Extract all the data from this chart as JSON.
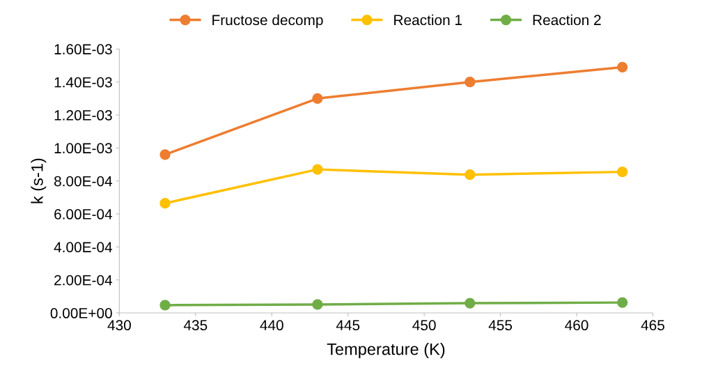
{
  "chart_data": {
    "type": "line",
    "xlabel": "Temperature (K)",
    "ylabel": "k (s-1)",
    "x": [
      433,
      443,
      453,
      463
    ],
    "series": [
      {
        "name": "Fructose decomp",
        "color": "#ed7d31",
        "values": [
          0.00096,
          0.0013,
          0.0014,
          0.00149
        ]
      },
      {
        "name": "Reaction 1",
        "color": "#ffc000",
        "values": [
          0.000665,
          0.00087,
          0.000838,
          0.000855
        ]
      },
      {
        "name": "Reaction 2",
        "color": "#70ad47",
        "values": [
          4.7e-05,
          5.1e-05,
          5.9e-05,
          6.3e-05
        ]
      }
    ],
    "xlim": [
      430,
      465
    ],
    "xticks": [
      430,
      435,
      440,
      445,
      450,
      455,
      460,
      465
    ],
    "ylim": [
      0,
      0.0016
    ],
    "yticks": [
      {
        "value": 0,
        "label": "0.00E+00"
      },
      {
        "value": 0.0002,
        "label": "2.00E-04"
      },
      {
        "value": 0.0004,
        "label": "4.00E-04"
      },
      {
        "value": 0.0006,
        "label": "6.00E-04"
      },
      {
        "value": 0.0008,
        "label": "8.00E-04"
      },
      {
        "value": 0.001,
        "label": "1.00E-03"
      },
      {
        "value": 0.0012,
        "label": "1.20E-03"
      },
      {
        "value": 0.0014,
        "label": "1.40E-03"
      },
      {
        "value": 0.0016,
        "label": "1.60E-03"
      }
    ],
    "legend": "top",
    "marker": "circle",
    "line_style": "solid",
    "grid": false
  }
}
